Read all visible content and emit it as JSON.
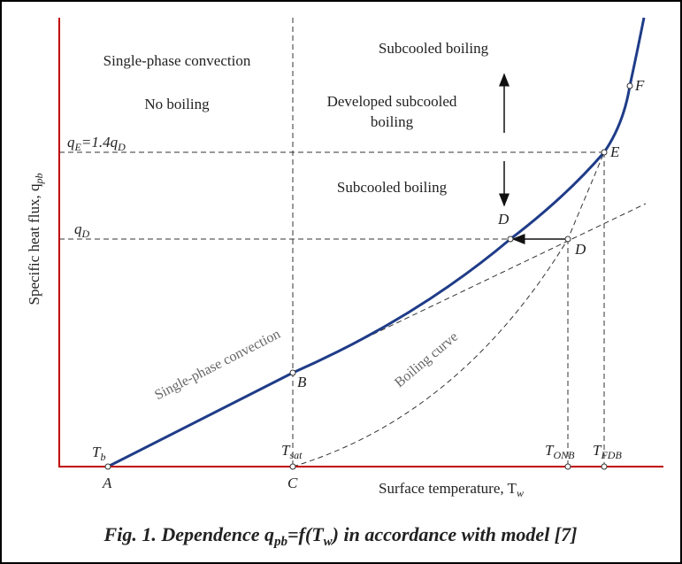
{
  "regions": {
    "single_phase": "Single-phase convection",
    "no_boiling": "No boiling",
    "subcooled_top": "Subcooled boiling",
    "developed": [
      "Developed subcooled",
      "boiling"
    ],
    "subcooled_mid": "Subcooled boiling"
  },
  "axes": {
    "y_label": [
      "Specific heat flux, q",
      "pb"
    ],
    "x_label": [
      "Surface temperature, T",
      "w"
    ]
  },
  "flux_labels": {
    "qe": [
      "q",
      "E",
      "=1.4q",
      "D"
    ],
    "qd": [
      "q",
      "D"
    ]
  },
  "points": [
    "A",
    "B",
    "C",
    "D",
    "D",
    "E",
    "F"
  ],
  "temperatures": [
    [
      "T",
      "b"
    ],
    [
      "T",
      "sat"
    ],
    [
      "T",
      "ONB"
    ],
    [
      "T",
      "FDB"
    ]
  ],
  "curve_labels": [
    "Single-phase convection",
    "Boiling curve"
  ],
  "caption": [
    "Fig. 1. Dependence q",
    "pb",
    "=f(T",
    "w",
    ") in accordance with model [7]"
  ]
}
